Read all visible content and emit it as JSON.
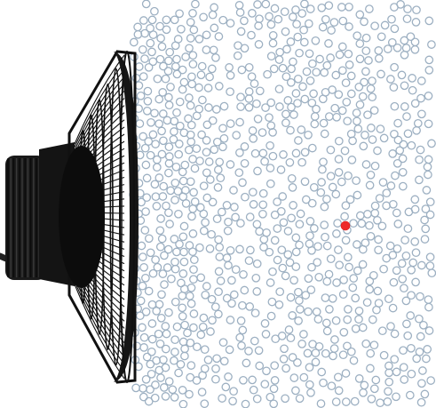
{
  "scene": {
    "description_colors": {
      "background": "#ffffff",
      "particle_stroke": "#9db0c2",
      "highlight_particle": "#ee2a2a",
      "speaker_body": "#111111"
    },
    "icons": [
      "loudspeaker-icon"
    ]
  }
}
